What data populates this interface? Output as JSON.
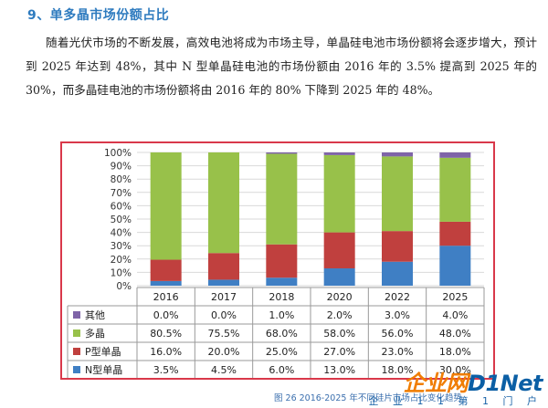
{
  "heading": "9、单多晶市场份额占比",
  "paragraph": "随着光伏市场的不断发展，高效电池将成为市场主导，单晶硅电池市场份额将会逐步增大，预计到 2025 年达到 48%，其中 N 型单晶硅电池的市场份额由 2016 年的 3.5% 提高到 2025 年的 30%，而多晶硅电池的市场份额将由 2016 年的 80% 下降到 2025 年的 48%。",
  "caption": "图 26 2016-2025 年不同硅片市场占比变化趋势",
  "watermark": {
    "brand_a": "企业网",
    "brand_b": "D1Net",
    "sub": "企 业 1 1 第 1 门 户"
  },
  "colors": {
    "other": "#7f64a8",
    "multi": "#98c14a",
    "p_mono": "#c0403e",
    "n_mono": "#3f7fc4"
  },
  "chart_data": {
    "type": "bar",
    "stacked": true,
    "categories": [
      "2016",
      "2017",
      "2018",
      "2020",
      "2022",
      "2025"
    ],
    "yticks": [
      "0%",
      "10%",
      "20%",
      "30%",
      "40%",
      "50%",
      "60%",
      "70%",
      "80%",
      "90%",
      "100%"
    ],
    "ylim": [
      0,
      100
    ],
    "series": [
      {
        "name": "N型单晶",
        "color": "#3f7fc4",
        "values": [
          3.5,
          4.5,
          6.0,
          13.0,
          18.0,
          30.0
        ],
        "labels": [
          "3.5%",
          "4.5%",
          "6.0%",
          "13.0%",
          "18.0%",
          "30.0%"
        ]
      },
      {
        "name": "P型单晶",
        "color": "#c0403e",
        "values": [
          16.0,
          20.0,
          25.0,
          27.0,
          23.0,
          18.0
        ],
        "labels": [
          "16.0%",
          "20.0%",
          "25.0%",
          "27.0%",
          "23.0%",
          "18.0%"
        ]
      },
      {
        "name": "多晶",
        "color": "#98c14a",
        "values": [
          80.5,
          75.5,
          68.0,
          58.0,
          56.0,
          48.0
        ],
        "labels": [
          "80.5%",
          "75.5%",
          "68.0%",
          "58.0%",
          "56.0%",
          "48.0%"
        ]
      },
      {
        "name": "其他",
        "color": "#7f64a8",
        "values": [
          0.0,
          0.0,
          1.0,
          2.0,
          3.0,
          4.0
        ],
        "labels": [
          "0.0%",
          "0.0%",
          "1.0%",
          "2.0%",
          "3.0%",
          "4.0%"
        ]
      }
    ],
    "table_row_order": [
      "其他",
      "多晶",
      "P型单晶",
      "N型单晶"
    ],
    "legend": "data-table"
  }
}
